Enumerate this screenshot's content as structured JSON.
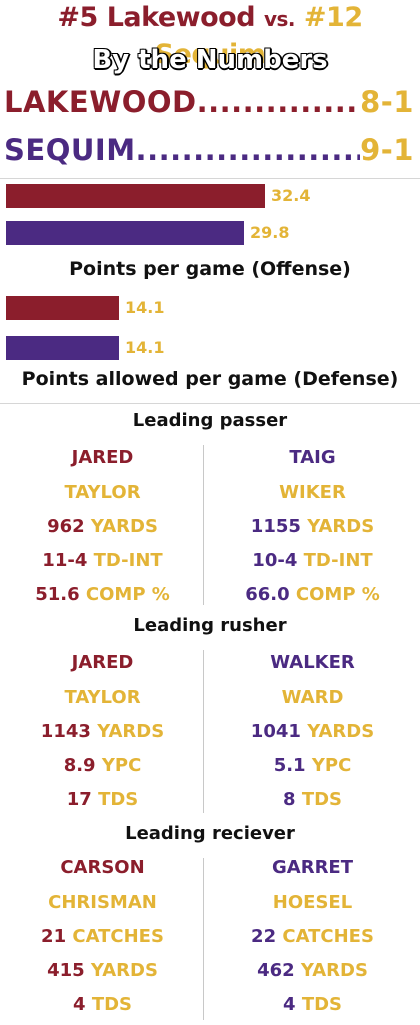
{
  "colors": {
    "lakewood": "#8b1e2c",
    "sequim": "#4b2a82",
    "gold": "#e3b437",
    "text": "#111111"
  },
  "header": {
    "home_team": "#5 Lakewood",
    "vs": "vs.",
    "away_team": "#12 Sequim",
    "subtitle": "By the Numbers"
  },
  "records": [
    {
      "team": "LAKEWOOD",
      "dots": "............................................",
      "record": "8-1"
    },
    {
      "team": "SEQUIM",
      "dots": "..................................................",
      "record": "9-1"
    }
  ],
  "offense": {
    "caption": "Points per game (Offense)",
    "lakewood": {
      "value": "32.4",
      "number": 32.4
    },
    "sequim": {
      "value": "29.8",
      "number": 29.8
    }
  },
  "defense": {
    "caption": "Points allowed per game (Defense)",
    "lakewood": {
      "value": "14.1",
      "number": 14.1
    },
    "sequim": {
      "value": "14.1",
      "number": 14.1
    }
  },
  "passer": {
    "title": "Leading passer",
    "left": {
      "first": "JARED",
      "last": "TAYLOR",
      "lines": [
        {
          "num": "962",
          "label": "YARDS"
        },
        {
          "num": "11-4",
          "label": "TD-INT"
        },
        {
          "num": "51.6",
          "label": "COMP %"
        }
      ]
    },
    "right": {
      "first": "TAIG",
      "last": "WIKER",
      "lines": [
        {
          "num": "1155",
          "label": "YARDS"
        },
        {
          "num": "10-4",
          "label": "TD-INT"
        },
        {
          "num": "66.0",
          "label": "COMP %"
        }
      ]
    }
  },
  "rusher": {
    "title": "Leading rusher",
    "left": {
      "first": "JARED",
      "last": "TAYLOR",
      "lines": [
        {
          "num": "1143",
          "label": "YARDS"
        },
        {
          "num": "8.9",
          "label": "YPC"
        },
        {
          "num": "17",
          "label": "TDS"
        }
      ]
    },
    "right": {
      "first": "WALKER",
      "last": "WARD",
      "lines": [
        {
          "num": "1041",
          "label": "YARDS"
        },
        {
          "num": "5.1",
          "label": "YPC"
        },
        {
          "num": "8",
          "label": "TDS"
        }
      ]
    }
  },
  "receiver": {
    "title": "Leading reciever",
    "left": {
      "first": "CARSON",
      "last": "CHRISMAN",
      "lines": [
        {
          "num": "21",
          "label": "CATCHES"
        },
        {
          "num": "415",
          "label": "YARDS"
        },
        {
          "num": "4",
          "label": "TDS"
        }
      ]
    },
    "right": {
      "first": "GARRET",
      "last": "HOESEL",
      "lines": [
        {
          "num": "22",
          "label": "CATCHES"
        },
        {
          "num": "462",
          "label": "YARDS"
        },
        {
          "num": "4",
          "label": "TDS"
        }
      ]
    }
  }
}
